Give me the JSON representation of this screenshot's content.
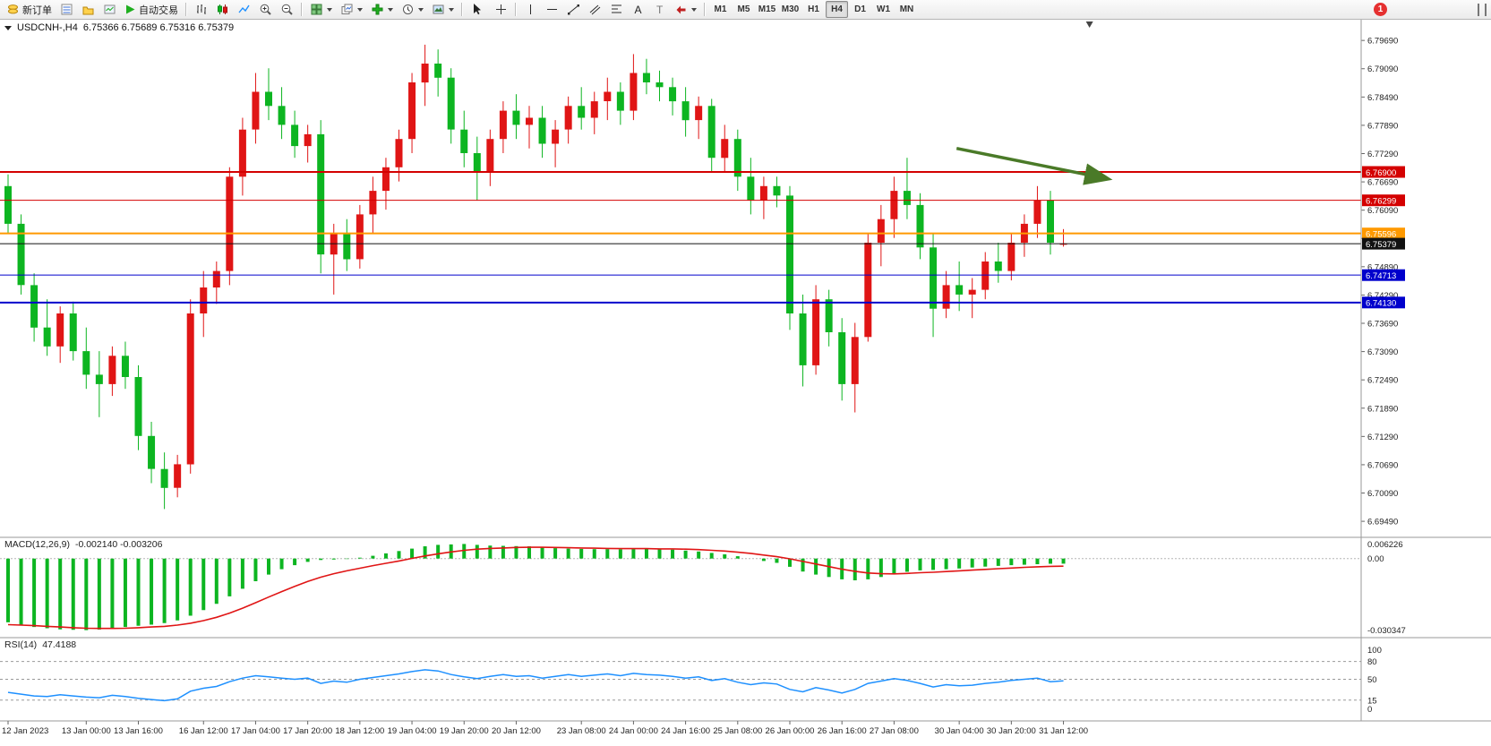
{
  "window": {
    "notification_count": "1"
  },
  "toolbar": {
    "new_order": "新订单",
    "autotrading": "自动交易",
    "text_tool_glyph": "A",
    "label_tool_glyph": "T",
    "timeframes": [
      "M1",
      "M5",
      "M15",
      "M30",
      "H1",
      "H4",
      "D1",
      "W1",
      "MN"
    ],
    "active_timeframe": "H4"
  },
  "chart": {
    "title_symbol": "USDCNH-,H4",
    "title_ohlc": "6.75366 6.75689 6.75316 6.75379"
  },
  "chart_data": {
    "type": "candlestick",
    "symbol": "USDCNH-",
    "timeframe": "H4",
    "last_ohlc": {
      "open": 6.75366,
      "high": 6.75689,
      "low": 6.75316,
      "close": 6.75379
    },
    "colors": {
      "up": "#e01515",
      "down": "#0db521",
      "macd_hist": "#0db521",
      "macd_signal": "#e01515",
      "rsi": "#1e90ff",
      "arrow": "#4a7a28"
    },
    "price_axis": {
      "ylim": [
        6.6915,
        6.8013
      ],
      "marks": [
        {
          "v": 6.7969,
          "t": "6.79690"
        },
        {
          "v": 6.7909,
          "t": "6.79090"
        },
        {
          "v": 6.7849,
          "t": "6.78490"
        },
        {
          "v": 6.7789,
          "t": "6.77890"
        },
        {
          "v": 6.7729,
          "t": "6.77290"
        },
        {
          "v": 6.7669,
          "t": "6.76690"
        },
        {
          "v": 6.7609,
          "t": "6.76090"
        },
        {
          "v": 6.7549,
          "t": "6.75490"
        },
        {
          "v": 6.7489,
          "t": "6.74890"
        },
        {
          "v": 6.7429,
          "t": "6.74290"
        },
        {
          "v": 6.7369,
          "t": "6.73690"
        },
        {
          "v": 6.7309,
          "t": "6.73090"
        },
        {
          "v": 6.7249,
          "t": "6.72490"
        },
        {
          "v": 6.7189,
          "t": "6.71890"
        },
        {
          "v": 6.7129,
          "t": "6.71290"
        },
        {
          "v": 6.7069,
          "t": "6.70690"
        },
        {
          "v": 6.7009,
          "t": "6.70090"
        },
        {
          "v": 6.6949,
          "t": "6.69490"
        }
      ]
    },
    "hlines": [
      {
        "price": 6.769,
        "label": "6.76900",
        "color": "#d40000",
        "width": 2
      },
      {
        "price": 6.76299,
        "label": "6.76299",
        "color": "#d40000",
        "width": 1
      },
      {
        "price": 6.75596,
        "label": "6.75596",
        "color": "#ff9900",
        "width": 2
      },
      {
        "price": 6.75379,
        "label": "6.75379",
        "color": "#111111",
        "width": 1
      },
      {
        "price": 6.74713,
        "label": "6.74713",
        "color": "#0000cc",
        "width": 1
      },
      {
        "price": 6.7413,
        "label": "6.74130",
        "color": "#0000cc",
        "width": 2
      }
    ],
    "shift_marker_bar": 83,
    "annotations": [
      {
        "type": "arrow",
        "from_bar": 72.8,
        "from_price": 6.774,
        "to_bar": 84.3,
        "to_price": 6.7676,
        "color": "#4a7a28"
      }
    ],
    "candles": [
      [
        6.766,
        6.7685,
        6.756,
        6.758
      ],
      [
        6.758,
        6.76,
        6.743,
        6.745
      ],
      [
        6.745,
        6.7475,
        6.733,
        6.736
      ],
      [
        6.736,
        6.742,
        6.73,
        6.732
      ],
      [
        6.732,
        6.7405,
        6.7285,
        6.739
      ],
      [
        6.739,
        6.7415,
        6.729,
        6.731
      ],
      [
        6.731,
        6.736,
        6.723,
        6.726
      ],
      [
        6.726,
        6.731,
        6.717,
        6.724
      ],
      [
        6.724,
        6.732,
        6.7215,
        6.73
      ],
      [
        6.73,
        6.733,
        6.723,
        6.7255
      ],
      [
        6.7255,
        6.728,
        6.71,
        6.713
      ],
      [
        6.713,
        6.716,
        6.703,
        6.706
      ],
      [
        6.706,
        6.7095,
        6.6975,
        6.702
      ],
      [
        6.702,
        6.709,
        6.7,
        6.707
      ],
      [
        6.707,
        6.742,
        6.705,
        6.739
      ],
      [
        6.739,
        6.748,
        6.734,
        6.7445
      ],
      [
        6.7445,
        6.75,
        6.741,
        6.748
      ],
      [
        6.748,
        6.77,
        6.745,
        6.768
      ],
      [
        6.768,
        6.7805,
        6.764,
        6.778
      ],
      [
        6.778,
        6.79,
        6.775,
        6.786
      ],
      [
        6.786,
        6.791,
        6.78,
        6.783
      ],
      [
        6.783,
        6.787,
        6.776,
        6.779
      ],
      [
        6.779,
        6.782,
        6.772,
        6.7745
      ],
      [
        6.7745,
        6.779,
        6.771,
        6.777
      ],
      [
        6.777,
        6.78,
        6.7475,
        6.7515
      ],
      [
        6.7515,
        6.758,
        6.743,
        6.756
      ],
      [
        6.756,
        6.759,
        6.748,
        6.7505
      ],
      [
        6.7505,
        6.762,
        6.7485,
        6.76
      ],
      [
        6.76,
        6.768,
        6.756,
        6.765
      ],
      [
        6.765,
        6.772,
        6.761,
        6.77
      ],
      [
        6.77,
        6.778,
        6.767,
        6.776
      ],
      [
        6.776,
        6.79,
        6.773,
        6.788
      ],
      [
        6.788,
        6.796,
        6.783,
        6.792
      ],
      [
        6.792,
        6.795,
        6.785,
        6.789
      ],
      [
        6.789,
        6.791,
        6.775,
        6.778
      ],
      [
        6.778,
        6.782,
        6.77,
        6.773
      ],
      [
        6.773,
        6.7765,
        6.763,
        6.769
      ],
      [
        6.769,
        6.778,
        6.766,
        6.776
      ],
      [
        6.776,
        6.784,
        6.773,
        6.782
      ],
      [
        6.782,
        6.7855,
        6.776,
        6.779
      ],
      [
        6.779,
        6.783,
        6.774,
        6.7805
      ],
      [
        6.7805,
        6.783,
        6.772,
        6.775
      ],
      [
        6.775,
        6.78,
        6.77,
        6.778
      ],
      [
        6.778,
        6.785,
        6.775,
        6.783
      ],
      [
        6.783,
        6.787,
        6.778,
        6.7805
      ],
      [
        6.7805,
        6.786,
        6.777,
        6.784
      ],
      [
        6.784,
        6.789,
        6.78,
        6.786
      ],
      [
        6.786,
        6.788,
        6.779,
        6.782
      ],
      [
        6.782,
        6.794,
        6.78,
        6.79
      ],
      [
        6.79,
        6.793,
        6.7855,
        6.788
      ],
      [
        6.788,
        6.7905,
        6.784,
        6.787
      ],
      [
        6.787,
        6.789,
        6.781,
        6.784
      ],
      [
        6.784,
        6.787,
        6.7765,
        6.78
      ],
      [
        6.78,
        6.785,
        6.776,
        6.783
      ],
      [
        6.783,
        6.7845,
        6.769,
        6.772
      ],
      [
        6.772,
        6.779,
        6.769,
        6.776
      ],
      [
        6.776,
        6.778,
        6.765,
        6.768
      ],
      [
        6.768,
        6.772,
        6.76,
        6.763
      ],
      [
        6.763,
        6.768,
        6.759,
        6.766
      ],
      [
        6.766,
        6.768,
        6.7615,
        6.764
      ],
      [
        6.764,
        6.766,
        6.7355,
        6.739
      ],
      [
        6.739,
        6.743,
        6.7235,
        6.728
      ],
      [
        6.728,
        6.745,
        6.726,
        6.742
      ],
      [
        6.742,
        6.744,
        6.732,
        6.735
      ],
      [
        6.735,
        6.738,
        6.7205,
        6.724
      ],
      [
        6.724,
        6.737,
        6.718,
        6.734
      ],
      [
        6.734,
        6.756,
        6.733,
        6.754
      ],
      [
        6.754,
        6.762,
        6.749,
        6.759
      ],
      [
        6.759,
        6.768,
        6.755,
        6.765
      ],
      [
        6.765,
        6.772,
        6.759,
        6.762
      ],
      [
        6.762,
        6.7645,
        6.7505,
        6.753
      ],
      [
        6.753,
        6.756,
        6.734,
        6.74
      ],
      [
        6.74,
        6.748,
        6.738,
        6.745
      ],
      [
        6.745,
        6.75,
        6.7395,
        6.743
      ],
      [
        6.743,
        6.7465,
        6.738,
        6.744
      ],
      [
        6.744,
        6.752,
        6.742,
        6.75
      ],
      [
        6.75,
        6.754,
        6.7455,
        6.748
      ],
      [
        6.748,
        6.756,
        6.746,
        6.754
      ],
      [
        6.754,
        6.76,
        6.751,
        6.758
      ],
      [
        6.758,
        6.766,
        6.755,
        6.763
      ],
      [
        6.763,
        6.765,
        6.7515,
        6.754
      ],
      [
        6.75366,
        6.75689,
        6.75316,
        6.75379
      ]
    ],
    "time_labels": [
      [
        0,
        "12 Jan 2023"
      ],
      [
        6,
        "13 Jan 00:00"
      ],
      [
        10,
        "13 Jan 16:00"
      ],
      [
        15,
        "16 Jan 12:00"
      ],
      [
        19,
        "17 Jan 04:00"
      ],
      [
        23,
        "17 Jan 20:00"
      ],
      [
        27,
        "18 Jan 12:00"
      ],
      [
        31,
        "19 Jan 04:00"
      ],
      [
        35,
        "19 Jan 20:00"
      ],
      [
        39,
        "20 Jan 12:00"
      ],
      [
        44,
        "23 Jan 08:00"
      ],
      [
        48,
        "24 Jan 00:00"
      ],
      [
        52,
        "24 Jan 16:00"
      ],
      [
        56,
        "25 Jan 08:00"
      ],
      [
        60,
        "26 Jan 00:00"
      ],
      [
        64,
        "26 Jan 16:00"
      ],
      [
        68,
        "27 Jan 08:00"
      ],
      [
        73,
        "30 Jan 04:00"
      ],
      [
        77,
        "30 Jan 20:00"
      ],
      [
        81,
        "31 Jan 12:00"
      ]
    ],
    "macd": {
      "label": "MACD(12,26,9)",
      "values_text": "-0.002140 -0.003206",
      "ylim": [
        -0.0335,
        0.009
      ],
      "axis_marks": [
        {
          "v": 0.006226,
          "t": "0.006226"
        },
        {
          "v": 0,
          "t": "0.00"
        },
        {
          "v": -0.030347,
          "t": "-0.030347"
        }
      ],
      "hist": [
        -0.027,
        -0.028,
        -0.029,
        -0.0295,
        -0.03,
        -0.0302,
        -0.0303,
        -0.0301,
        -0.0296,
        -0.029,
        -0.0285,
        -0.028,
        -0.0273,
        -0.0262,
        -0.0242,
        -0.0218,
        -0.0192,
        -0.016,
        -0.0128,
        -0.0096,
        -0.0068,
        -0.0045,
        -0.0028,
        -0.0014,
        -0.0006,
        -0.0004,
        -0.0002,
        0.0004,
        0.0012,
        0.0022,
        0.0032,
        0.0042,
        0.0052,
        0.0058,
        0.006,
        0.0062,
        0.0058,
        0.0055,
        0.0054,
        0.0053,
        0.0052,
        0.0048,
        0.0044,
        0.0042,
        0.0041,
        0.004,
        0.004,
        0.0039,
        0.004,
        0.0041,
        0.004,
        0.0038,
        0.0034,
        0.003,
        0.0024,
        0.0018,
        0.001,
        0.0,
        -0.001,
        -0.0018,
        -0.0035,
        -0.0055,
        -0.0068,
        -0.0078,
        -0.0088,
        -0.0092,
        -0.0088,
        -0.0078,
        -0.0066,
        -0.0056,
        -0.005,
        -0.0048,
        -0.0045,
        -0.0042,
        -0.0038,
        -0.0034,
        -0.0031,
        -0.0028,
        -0.0026,
        -0.0024,
        -0.0022,
        -0.00214
      ],
      "signal": [
        -0.028,
        -0.0282,
        -0.0284,
        -0.0287,
        -0.029,
        -0.0293,
        -0.0295,
        -0.0296,
        -0.0296,
        -0.0295,
        -0.0293,
        -0.029,
        -0.0287,
        -0.0282,
        -0.0274,
        -0.0263,
        -0.0249,
        -0.0231,
        -0.021,
        -0.0187,
        -0.0163,
        -0.014,
        -0.0118,
        -0.0097,
        -0.0079,
        -0.0064,
        -0.0052,
        -0.0041,
        -0.003,
        -0.002,
        -0.001,
        0.0001,
        0.0011,
        0.002,
        0.0028,
        0.0035,
        0.004,
        0.0043,
        0.0045,
        0.0047,
        0.0048,
        0.0048,
        0.0047,
        0.0046,
        0.0045,
        0.0044,
        0.0043,
        0.0042,
        0.0042,
        0.0042,
        0.0041,
        0.0041,
        0.004,
        0.0038,
        0.0035,
        0.0032,
        0.0027,
        0.0022,
        0.0015,
        0.0008,
        -0.0001,
        -0.0012,
        -0.0023,
        -0.0034,
        -0.0045,
        -0.0054,
        -0.0061,
        -0.0064,
        -0.0065,
        -0.0063,
        -0.006,
        -0.0058,
        -0.0055,
        -0.0052,
        -0.0049,
        -0.0046,
        -0.0043,
        -0.004,
        -0.0037,
        -0.0035,
        -0.0033,
        -0.003206
      ]
    },
    "rsi": {
      "label": "RSI(14)",
      "value_text": "47.4188",
      "ylim": [
        -20,
        120
      ],
      "levels": [
        80,
        50,
        15
      ],
      "axis_marks": [
        {
          "v": 100,
          "t": "100"
        },
        {
          "v": 80,
          "t": "80"
        },
        {
          "v": 50,
          "t": "50"
        },
        {
          "v": 15,
          "t": "15"
        },
        {
          "v": 0,
          "t": "0"
        }
      ],
      "values": [
        28,
        25,
        22,
        21,
        24,
        22,
        20,
        19,
        23,
        21,
        18,
        16,
        14,
        17,
        30,
        35,
        38,
        46,
        52,
        56,
        54,
        52,
        50,
        52,
        43,
        47,
        45,
        50,
        53,
        56,
        59,
        63,
        66,
        64,
        58,
        54,
        51,
        55,
        58,
        55,
        56,
        52,
        55,
        58,
        55,
        57,
        59,
        56,
        60,
        58,
        57,
        55,
        52,
        54,
        48,
        51,
        45,
        41,
        44,
        42,
        33,
        29,
        36,
        32,
        27,
        33,
        43,
        47,
        51,
        48,
        43,
        37,
        41,
        39,
        40,
        43,
        45,
        48,
        50,
        52,
        46,
        47.4188
      ]
    }
  }
}
